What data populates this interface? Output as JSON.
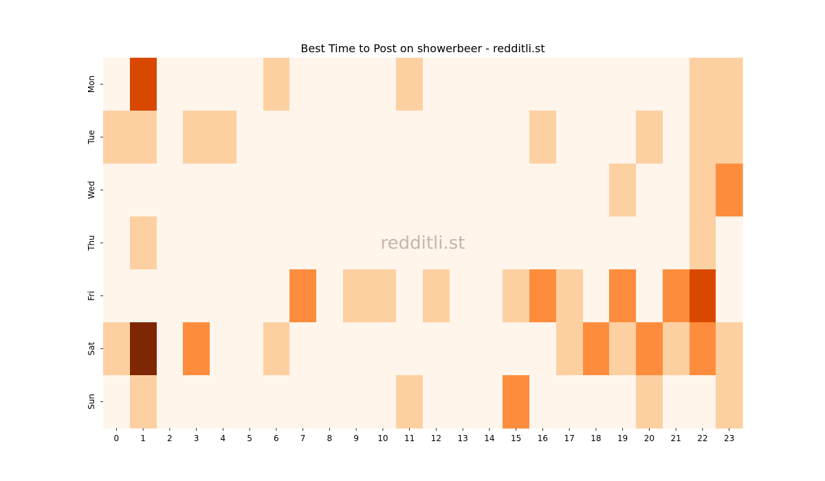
{
  "chart_data": {
    "type": "heatmap",
    "title": "Best Time to Post on showerbeer - redditli.st",
    "watermark": "redditli.st",
    "x_categories": [
      "0",
      "1",
      "2",
      "3",
      "4",
      "5",
      "6",
      "7",
      "8",
      "9",
      "10",
      "11",
      "12",
      "13",
      "14",
      "15",
      "16",
      "17",
      "18",
      "19",
      "20",
      "21",
      "22",
      "23"
    ],
    "y_categories": [
      "Mon",
      "Tue",
      "Wed",
      "Thu",
      "Fri",
      "Sat",
      "Sun"
    ],
    "xlabel": "",
    "ylabel": "",
    "colormap": "Oranges",
    "color_scale": [
      "#fff5eb",
      "#fdd0a2",
      "#fd8d3c",
      "#d94801",
      "#7f2704"
    ],
    "legend": "none",
    "grid": false,
    "values": [
      [
        0,
        3,
        0,
        0,
        0,
        0,
        1,
        0,
        0,
        0,
        0,
        1,
        0,
        0,
        0,
        0,
        0,
        0,
        0,
        0,
        0,
        0,
        1,
        1
      ],
      [
        1,
        1,
        0,
        1,
        1,
        0,
        0,
        0,
        0,
        0,
        0,
        0,
        0,
        0,
        0,
        0,
        1,
        0,
        0,
        0,
        1,
        0,
        1,
        1
      ],
      [
        0,
        0,
        0,
        0,
        0,
        0,
        0,
        0,
        0,
        0,
        0,
        0,
        0,
        0,
        0,
        0,
        0,
        0,
        0,
        1,
        0,
        0,
        1,
        2
      ],
      [
        0,
        1,
        0,
        0,
        0,
        0,
        0,
        0,
        0,
        0,
        0,
        0,
        0,
        0,
        0,
        0,
        0,
        0,
        0,
        0,
        0,
        0,
        1,
        0
      ],
      [
        0,
        0,
        0,
        0,
        0,
        0,
        0,
        2,
        0,
        1,
        1,
        0,
        1,
        0,
        0,
        1,
        2,
        1,
        0,
        2,
        0,
        2,
        3,
        0
      ],
      [
        1,
        4,
        0,
        2,
        0,
        0,
        1,
        0,
        0,
        0,
        0,
        0,
        0,
        0,
        0,
        0,
        0,
        1,
        2,
        1,
        2,
        1,
        2,
        1
      ],
      [
        0,
        1,
        0,
        0,
        0,
        0,
        0,
        0,
        0,
        0,
        0,
        1,
        0,
        0,
        0,
        2,
        0,
        0,
        0,
        0,
        1,
        0,
        0,
        1
      ]
    ]
  }
}
